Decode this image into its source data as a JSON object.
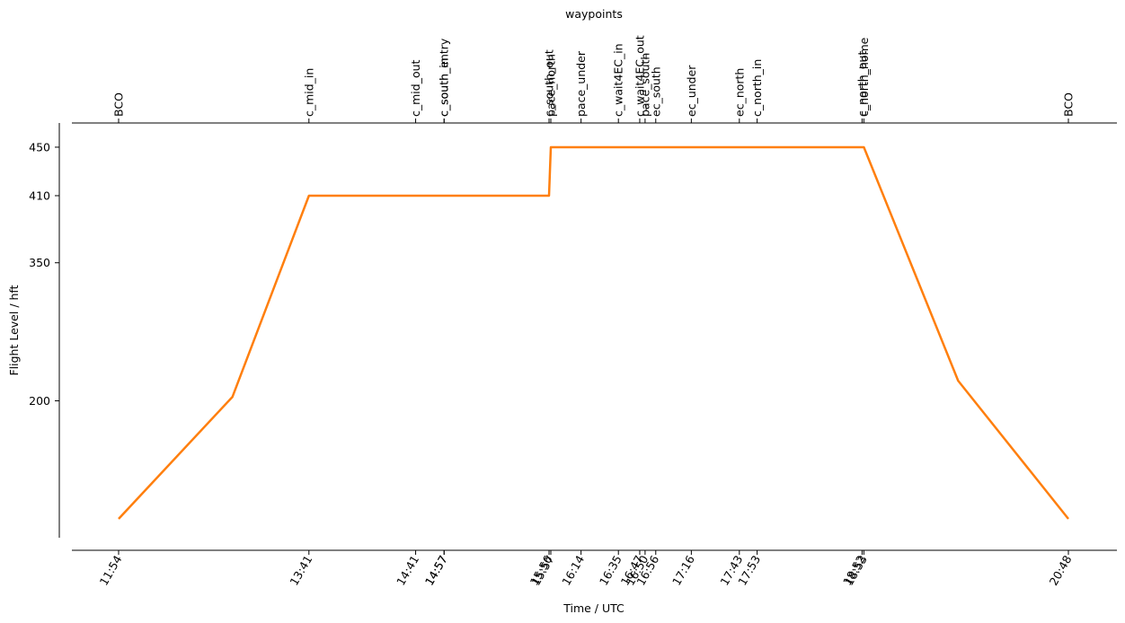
{
  "chart_data": {
    "type": "line",
    "title": "",
    "top_axis_label": "waypoints",
    "xlabel": "Time / UTC",
    "ylabel": "Flight Level / hft",
    "y_ticks": [
      200,
      350,
      410,
      450
    ],
    "y_tick_labels": [
      "200",
      "350",
      "410",
      "450"
    ],
    "ylim": [
      0,
      470
    ],
    "x_ticks": [
      {
        "time": "11:54",
        "waypoint": "BCO"
      },
      {
        "time": "13:41",
        "waypoint": "c_mid_in"
      },
      {
        "time": "14:41",
        "waypoint": "c_mid_out"
      },
      {
        "time": "14:57",
        "waypoint": "c_south_in"
      },
      {
        "time": "14:57",
        "waypoint": "c_south_entry"
      },
      {
        "time": "15:56",
        "waypoint": "c_south_out"
      },
      {
        "time": "15:57",
        "waypoint": "pace_north"
      },
      {
        "time": "16:14",
        "waypoint": "pace_under"
      },
      {
        "time": "16:35",
        "waypoint": "c_wait4EC_in"
      },
      {
        "time": "16:47",
        "waypoint": "c_wait4EC_out"
      },
      {
        "time": "16:50",
        "waypoint": "pace_south"
      },
      {
        "time": "16:56",
        "waypoint": "ec_south"
      },
      {
        "time": "17:16",
        "waypoint": "ec_under"
      },
      {
        "time": "17:43",
        "waypoint": "ec_north"
      },
      {
        "time": "17:53",
        "waypoint": "c_north_in"
      },
      {
        "time": "18:52",
        "waypoint": "c_north_out"
      },
      {
        "time": "18:53",
        "waypoint": "c_north_home"
      },
      {
        "time": "20:48",
        "waypoint": "BCO"
      }
    ],
    "series": [
      {
        "color": "#ff7f0e",
        "points": [
          {
            "time": "11:54",
            "fl": 0
          },
          {
            "time": "12:58",
            "fl": 205
          },
          {
            "time": "13:41",
            "fl": 410
          },
          {
            "time": "15:56",
            "fl": 410
          },
          {
            "time": "15:57",
            "fl": 450
          },
          {
            "time": "18:53",
            "fl": 450
          },
          {
            "time": "19:46",
            "fl": 225
          },
          {
            "time": "20:48",
            "fl": 0
          }
        ]
      }
    ],
    "grid": false,
    "legend": "none"
  }
}
